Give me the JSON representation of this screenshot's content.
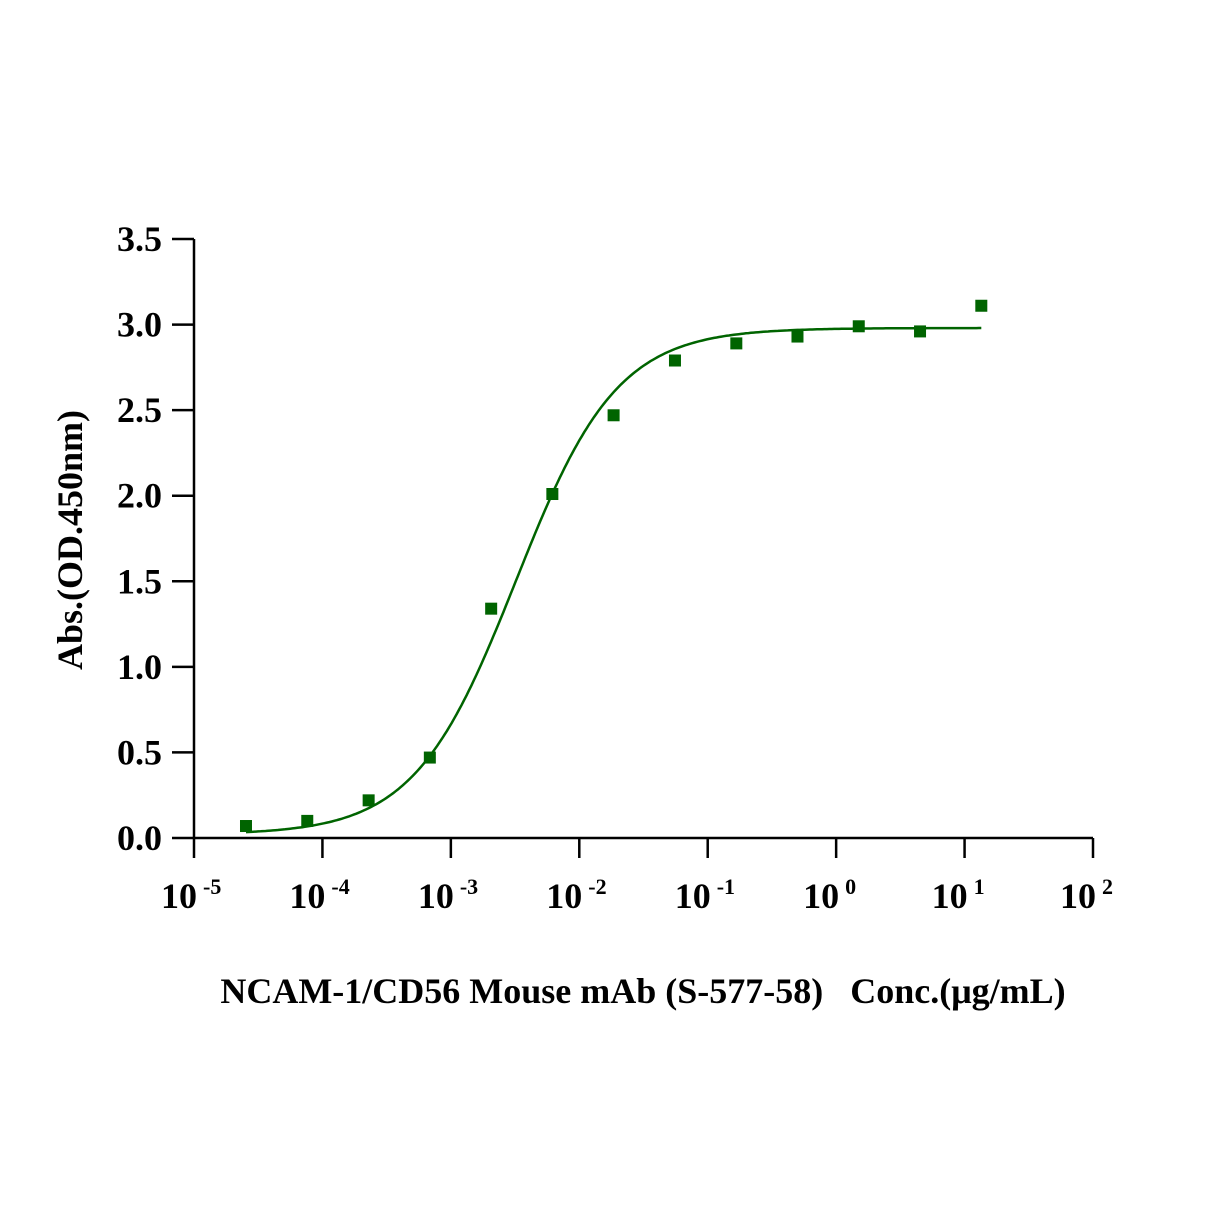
{
  "chart_data": {
    "type": "scatter",
    "title": "",
    "xlabel": "NCAM-1/CD56 Mouse mAb (S-577-58)   Conc.(μg/mL)",
    "ylabel": "Abs.(OD.450nm)",
    "xscale": "log10",
    "xlim": [
      1e-05,
      100
    ],
    "ylim": [
      0,
      3.5
    ],
    "x_ticks": [
      {
        "base": "10",
        "exp": "-5",
        "value": -5
      },
      {
        "base": "10",
        "exp": "-4",
        "value": -4
      },
      {
        "base": "10",
        "exp": "-3",
        "value": -3
      },
      {
        "base": "10",
        "exp": "-2",
        "value": -2
      },
      {
        "base": "10",
        "exp": "-1",
        "value": -1
      },
      {
        "base": "10",
        "exp": "0",
        "value": 0
      },
      {
        "base": "10",
        "exp": "1",
        "value": 1
      },
      {
        "base": "10",
        "exp": "2",
        "value": 2
      }
    ],
    "y_ticks": [
      "0.0",
      "0.5",
      "1.0",
      "1.5",
      "2.0",
      "2.5",
      "3.0",
      "3.5"
    ],
    "grid": false,
    "color": "#006400",
    "series": [
      {
        "name": "NCAM-1/CD56 Mouse mAb (S-577-58)",
        "marker": "square",
        "x": [
          2.54e-05,
          7.62e-05,
          0.000229,
          0.000686,
          0.00206,
          0.00617,
          0.0185,
          0.0556,
          0.167,
          0.5,
          1.5,
          4.5,
          13.5
        ],
        "y": [
          0.07,
          0.1,
          0.22,
          0.47,
          1.34,
          2.01,
          2.47,
          2.79,
          2.89,
          2.93,
          2.99,
          2.96,
          3.11
        ]
      }
    ],
    "fit": {
      "type": "4PL",
      "bottom": 0.02,
      "top": 2.98,
      "ec50": 0.0032,
      "hill": 1.1
    }
  }
}
